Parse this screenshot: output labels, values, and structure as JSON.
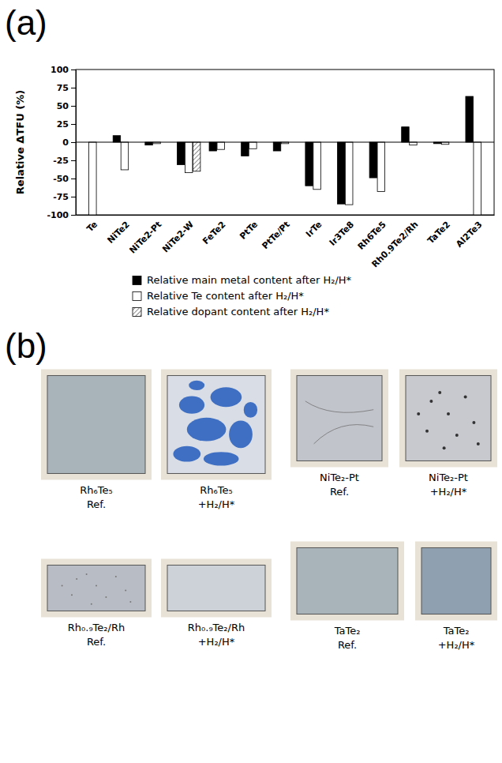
{
  "chart_data": {
    "type": "bar",
    "y_label": "Relative ΔTFU (%)",
    "categories": [
      "Te",
      "NiTe2",
      "NiTe2-Pt",
      "NiTe2-W",
      "FeTe2",
      "PtTe",
      "PtTe/Pt",
      "IrTe",
      "Ir3Te8",
      "Rh6Te5",
      "Rh0.9Te2/Rh",
      "TaTe2",
      "Al2Te3"
    ],
    "series": [
      {
        "name": "Relative main metal content after H₂/H*",
        "color": "#000000",
        "values": [
          null,
          9,
          -4,
          -31,
          -12,
          -19,
          -12,
          -60,
          -85,
          -49,
          21,
          -2,
          63
        ]
      },
      {
        "name": "Relative Te content after H₂/H*",
        "color": "#ffffff",
        "values": [
          -100,
          -38,
          -2,
          -42,
          -10,
          -9,
          -2,
          -65,
          -86,
          -68,
          -4,
          -3,
          -100
        ]
      },
      {
        "name": "Relative dopant content after H₂/H*",
        "color": "#8c8c8c",
        "values": [
          null,
          null,
          null,
          -40,
          null,
          null,
          null,
          null,
          null,
          null,
          null,
          null,
          null
        ]
      }
    ],
    "ylim": [
      -100,
      100
    ],
    "yticks": [
      -100,
      -75,
      -50,
      -25,
      0,
      25,
      50,
      75,
      100
    ],
    "grid": false,
    "legend": "bottom"
  },
  "figure": {
    "panel_labels": [
      "(a)",
      "(b)"
    ],
    "photos": [
      {
        "caption": [
          "Rh₆Te₅",
          "Ref."
        ]
      },
      {
        "caption": [
          "Rh₆Te₅",
          "+H₂/H*"
        ]
      },
      {
        "caption": [
          "Rh₀.₉Te₂/Rh",
          "Ref."
        ]
      },
      {
        "caption": [
          "Rh₀.₉Te₂/Rh",
          "+H₂/H*"
        ]
      },
      {
        "caption": [
          "NiTe₂-Pt",
          "Ref."
        ]
      },
      {
        "caption": [
          "NiTe₂-Pt",
          "+H₂/H*"
        ]
      },
      {
        "caption": [
          "TaTe₂",
          "Ref."
        ]
      },
      {
        "caption": [
          "TaTe₂",
          "+H₂/H*"
        ]
      }
    ]
  }
}
